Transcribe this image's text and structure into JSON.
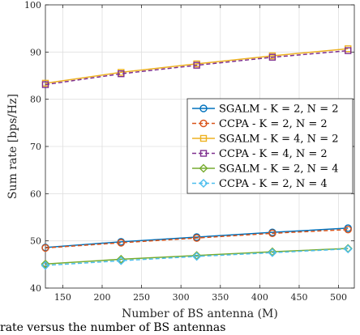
{
  "chart_data": {
    "type": "line",
    "xlabel": "Number of BS antenna (M)",
    "ylabel": "Sum rate [bps/Hz]",
    "xlim": [
      128,
      520
    ],
    "ylim": [
      40,
      100
    ],
    "xticks": [
      150,
      200,
      250,
      300,
      350,
      400,
      450,
      500
    ],
    "yticks": [
      40,
      50,
      60,
      70,
      80,
      90,
      100
    ],
    "grid": true,
    "legend_position": "center-right",
    "series": [
      {
        "name": "SGALM - K = 2, N = 2",
        "color": "#0072bd",
        "dash": "solid",
        "marker": "circle",
        "x": [
          128,
          224,
          320,
          416,
          512
        ],
        "y": [
          48.6,
          49.8,
          50.8,
          51.8,
          52.7
        ]
      },
      {
        "name": "CCPA - K = 2, N = 2",
        "color": "#d95319",
        "dash": "dashed",
        "marker": "circle",
        "x": [
          128,
          224,
          320,
          416,
          512
        ],
        "y": [
          48.5,
          49.6,
          50.6,
          51.6,
          52.4
        ]
      },
      {
        "name": "SGALM - K = 4, N = 2",
        "color": "#edb120",
        "dash": "solid",
        "marker": "square",
        "x": [
          128,
          224,
          320,
          416,
          512
        ],
        "y": [
          83.4,
          85.7,
          87.5,
          89.2,
          90.7
        ]
      },
      {
        "name": "CCPA - K = 4, N = 2",
        "color": "#7e2f8e",
        "dash": "dashed",
        "marker": "square",
        "x": [
          128,
          224,
          320,
          416,
          512
        ],
        "y": [
          83.1,
          85.4,
          87.2,
          88.9,
          90.3
        ]
      },
      {
        "name": "SGALM - K = 2, N = 4",
        "color": "#77ac30",
        "dash": "solid",
        "marker": "diamond",
        "x": [
          128,
          224,
          320,
          416,
          512
        ],
        "y": [
          45.1,
          46.1,
          46.9,
          47.7,
          48.4
        ]
      },
      {
        "name": "CCPA - K = 2, N = 4",
        "color": "#4dbeee",
        "dash": "dashed",
        "marker": "diamond",
        "x": [
          128,
          224,
          320,
          416,
          512
        ],
        "y": [
          44.8,
          45.8,
          46.7,
          47.5,
          48.3
        ]
      }
    ]
  },
  "caption": "rate versus the number of BS antennas"
}
